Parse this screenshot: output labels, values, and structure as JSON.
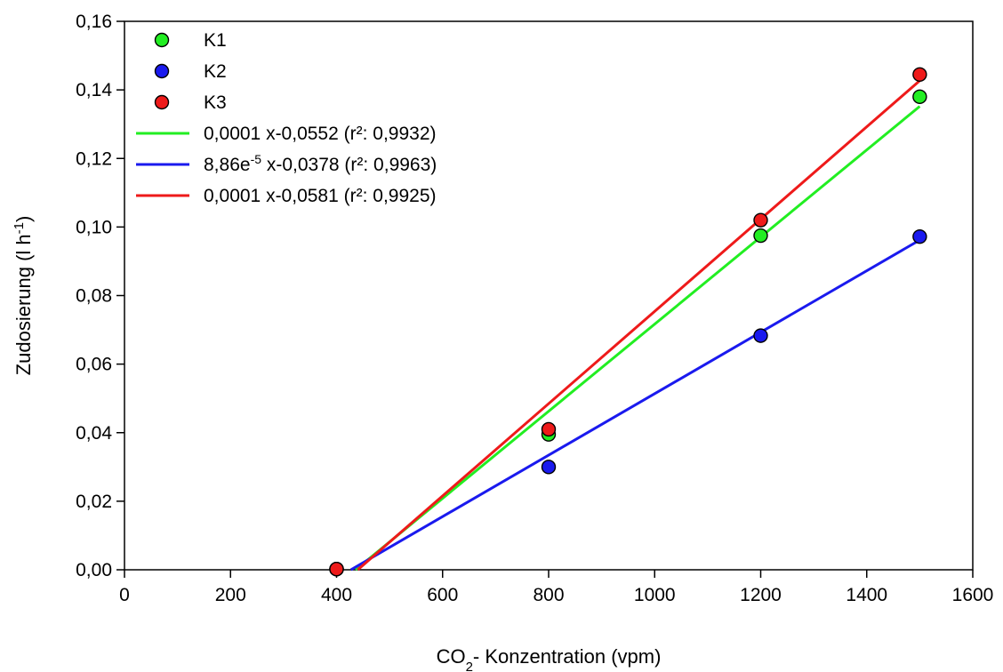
{
  "chart_data": {
    "type": "scatter",
    "title": "",
    "xlabel": {
      "parts": [
        {
          "text": "CO",
          "style": "normal"
        },
        {
          "text": "2",
          "style": "sub"
        },
        {
          "text": "- Konzentration (vpm)",
          "style": "normal"
        }
      ]
    },
    "ylabel": {
      "parts": [
        {
          "text": "Zudosierung (l h",
          "style": "normal"
        },
        {
          "text": "-1",
          "style": "sup"
        },
        {
          "text": ")",
          "style": "normal"
        }
      ]
    },
    "xlim": [
      0,
      1600
    ],
    "ylim": [
      0,
      0.16
    ],
    "x_ticks": [
      0,
      200,
      400,
      600,
      800,
      1000,
      1200,
      1400,
      1600
    ],
    "x_tick_labels": [
      "0",
      "200",
      "400",
      "600",
      "800",
      "1000",
      "1200",
      "1400",
      "1600"
    ],
    "y_ticks": [
      0,
      0.02,
      0.04,
      0.06,
      0.08,
      0.1,
      0.12,
      0.14,
      0.16
    ],
    "y_tick_labels": [
      "0,00",
      "0,02",
      "0,04",
      "0,06",
      "0,08",
      "0,10",
      "0,12",
      "0,14",
      "0,16"
    ],
    "grid": false,
    "legend_position": "top-left",
    "series": [
      {
        "name": "K1",
        "kind": "points",
        "color": "#22ee22",
        "x": [
          400,
          800,
          1200,
          1500
        ],
        "y": [
          0.0002,
          0.0395,
          0.0975,
          0.138
        ]
      },
      {
        "name": "K2",
        "kind": "points",
        "color": "#1a1aee",
        "x": [
          400,
          800,
          1200,
          1500
        ],
        "y": [
          0.0002,
          0.03,
          0.0683,
          0.0972
        ]
      },
      {
        "name": "K3",
        "kind": "points",
        "color": "#ee1a1a",
        "x": [
          400,
          800,
          1200,
          1500
        ],
        "y": [
          0.0002,
          0.041,
          0.102,
          0.1445
        ]
      },
      {
        "name": "0,0001 x-0,0552 (r²: 0,9932)",
        "kind": "line",
        "color": "#22ee22",
        "x": [
          436,
          1500
        ],
        "y": [
          0,
          0.1352
        ]
      },
      {
        "name": "8,86e-5 x-0,0378 (r²: 0,9963)",
        "kind": "line",
        "color": "#1a1aee",
        "legend_parts": [
          {
            "text": "8,86e",
            "style": "normal"
          },
          {
            "text": "-5",
            "style": "sup"
          },
          {
            "text": " x-0,0378 (r²: 0,9963)",
            "style": "normal"
          }
        ],
        "x": [
          427,
          1500
        ],
        "y": [
          0,
          0.0962
        ]
      },
      {
        "name": "0,0001 x-0,0581 (r²: 0,9925)",
        "kind": "line",
        "color": "#ee1a1a",
        "x": [
          440,
          1500
        ],
        "y": [
          0,
          0.1427
        ]
      }
    ]
  }
}
